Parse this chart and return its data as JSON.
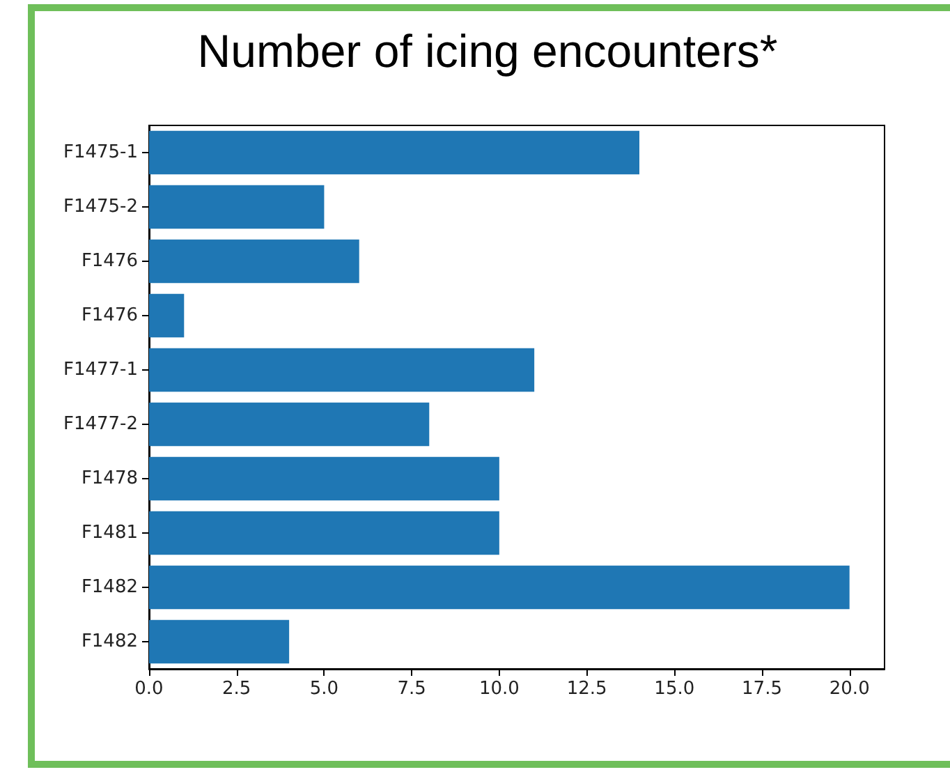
{
  "chart_data": {
    "type": "bar",
    "title": "Number of icing encounters*",
    "orientation": "horizontal",
    "categories": [
      "F1475-1",
      "F1475-2",
      "F1476",
      "F1476",
      "F1477-1",
      "F1477-2",
      "F1478",
      "F1481",
      "F1482",
      "F1482"
    ],
    "values": [
      14,
      5,
      6,
      1,
      11,
      8,
      10,
      10,
      20,
      4
    ],
    "color": "#1f77b4",
    "xlim": [
      0,
      21
    ],
    "xticks": [
      {
        "value": 0,
        "label": "0.0"
      },
      2.5,
      {
        "value": 5,
        "label": "5.0"
      },
      7.5,
      {
        "value": 10,
        "label": "10.0"
      },
      12.5,
      {
        "value": 15,
        "label": "15.0"
      },
      17.5,
      {
        "value": 20,
        "label": "20.0"
      }
    ],
    "grid": false
  }
}
